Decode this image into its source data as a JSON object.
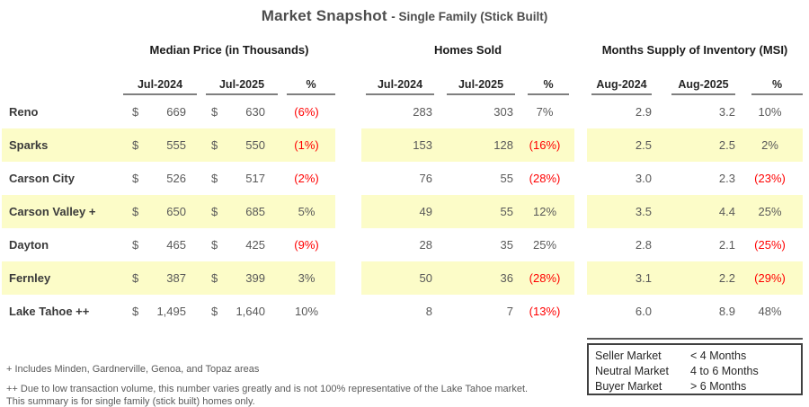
{
  "title": {
    "main": "Market Snapshot",
    "sub": "- Single Family (Stick Built)"
  },
  "currency_symbol": "$",
  "colors": {
    "highlight": "#FCFCC8",
    "negative": "#FF0000"
  },
  "groups": [
    {
      "label": "Median Price (in Thousands)",
      "columns": [
        "Jul-2024",
        "Jul-2025",
        "%"
      ]
    },
    {
      "label": "Homes Sold",
      "columns": [
        "Jul-2024",
        "Jul-2025",
        "%"
      ]
    },
    {
      "label": "Months Supply of Inventory (MSI)",
      "columns": [
        "Aug-2024",
        "Aug-2025",
        "%"
      ]
    }
  ],
  "rows": [
    {
      "label": "Reno",
      "highlight": false,
      "mp1": "669",
      "mp2": "630",
      "mp_pct": "(6%)",
      "mp_neg": true,
      "hs1": "283",
      "hs2": "303",
      "hs_pct": "7%",
      "hs_neg": false,
      "msi1": "2.9",
      "msi2": "3.2",
      "msi_pct": "10%",
      "msi_neg": false
    },
    {
      "label": "Sparks",
      "highlight": true,
      "mp1": "555",
      "mp2": "550",
      "mp_pct": "(1%)",
      "mp_neg": true,
      "hs1": "153",
      "hs2": "128",
      "hs_pct": "(16%)",
      "hs_neg": true,
      "msi1": "2.5",
      "msi2": "2.5",
      "msi_pct": "2%",
      "msi_neg": false
    },
    {
      "label": "Carson City",
      "highlight": false,
      "mp1": "526",
      "mp2": "517",
      "mp_pct": "(2%)",
      "mp_neg": true,
      "hs1": "76",
      "hs2": "55",
      "hs_pct": "(28%)",
      "hs_neg": true,
      "msi1": "3.0",
      "msi2": "2.3",
      "msi_pct": "(23%)",
      "msi_neg": true
    },
    {
      "label": "Carson Valley +",
      "highlight": true,
      "mp1": "650",
      "mp2": "685",
      "mp_pct": "5%",
      "mp_neg": false,
      "hs1": "49",
      "hs2": "55",
      "hs_pct": "12%",
      "hs_neg": false,
      "msi1": "3.5",
      "msi2": "4.4",
      "msi_pct": "25%",
      "msi_neg": false
    },
    {
      "label": "Dayton",
      "highlight": false,
      "mp1": "465",
      "mp2": "425",
      "mp_pct": "(9%)",
      "mp_neg": true,
      "hs1": "28",
      "hs2": "35",
      "hs_pct": "25%",
      "hs_neg": false,
      "msi1": "2.8",
      "msi2": "2.1",
      "msi_pct": "(25%)",
      "msi_neg": true
    },
    {
      "label": "Fernley",
      "highlight": true,
      "mp1": "387",
      "mp2": "399",
      "mp_pct": "3%",
      "mp_neg": false,
      "hs1": "50",
      "hs2": "36",
      "hs_pct": "(28%)",
      "hs_neg": true,
      "msi1": "3.1",
      "msi2": "2.2",
      "msi_pct": "(29%)",
      "msi_neg": true
    },
    {
      "label": "Lake Tahoe ++",
      "highlight": false,
      "mp1": "1,495",
      "mp2": "1,640",
      "mp_pct": "10%",
      "mp_neg": false,
      "hs1": "8",
      "hs2": "7",
      "hs_pct": "(13%)",
      "hs_neg": true,
      "msi1": "6.0",
      "msi2": "8.9",
      "msi_pct": "48%",
      "msi_neg": false
    }
  ],
  "footnotes": [
    "+ Includes Minden, Gardnerville, Genoa, and Topaz areas",
    "++ Due to low transaction volume, this number varies greatly and is not 100% representative of the Lake Tahoe market.",
    "This summary is for single family (stick built) homes only."
  ],
  "legend": {
    "rows": [
      {
        "label": "Seller Market",
        "value": "< 4 Months"
      },
      {
        "label": "Neutral Market",
        "value": "4 to 6 Months"
      },
      {
        "label": "Buyer Market",
        "value": "> 6  Months"
      }
    ]
  }
}
